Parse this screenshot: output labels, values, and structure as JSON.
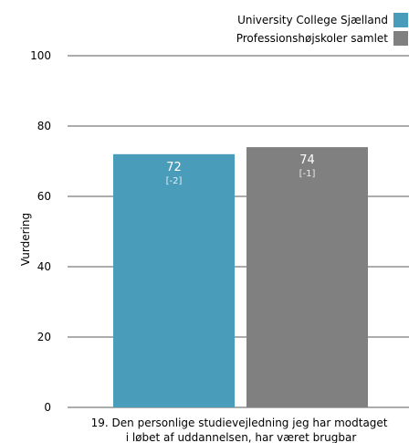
{
  "chart_data": {
    "type": "bar",
    "title": "",
    "xlabel": "",
    "ylabel": "Vurdering",
    "ylim": [
      0,
      100
    ],
    "yticks": [
      0,
      20,
      40,
      60,
      80,
      100
    ],
    "grid": true,
    "legend_position": "top-right",
    "categories": [
      "19. Den personlige studievejledning jeg har modtaget i løbet af uddannelsen, har været brugbar"
    ],
    "category_label_lines": [
      "19. Den personlige studievejledning jeg har modtaget",
      "i løbet af uddannelsen, har været brugbar"
    ],
    "series": [
      {
        "name": "University College Sjælland",
        "color": "#4a9cbb",
        "values": [
          72
        ],
        "value_labels": [
          "72"
        ],
        "delta_labels": [
          "[-2]"
        ]
      },
      {
        "name": "Professionshøjskoler samlet",
        "color": "#808080",
        "values": [
          74
        ],
        "value_labels": [
          "74"
        ],
        "delta_labels": [
          "[-1]"
        ]
      }
    ]
  }
}
